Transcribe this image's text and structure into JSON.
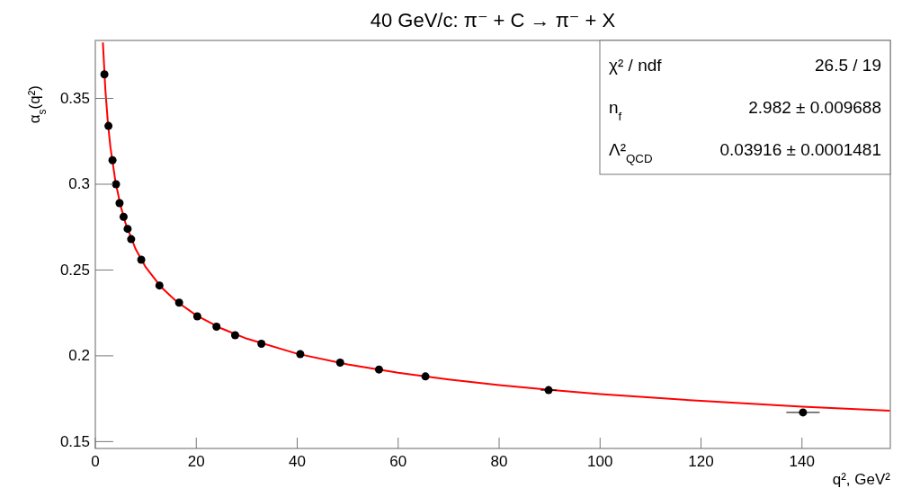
{
  "chart_data": {
    "type": "scatter",
    "title": "40 GeV/c: π⁻ + C → π⁻ + X",
    "xlabel": "q², GeV²",
    "ylabel": "α$_{s}$(q²)",
    "annotations": [
      "χ² / ndf",
      "26.5 / 19",
      "n$_{f}$",
      "2.982 ± 0.009688",
      "Λ²$_{QCD}$",
      "0.03916 ± 0.0001481"
    ],
    "xlim": [
      0,
      157.5
    ],
    "ylim": [
      0.146,
      0.3838
    ],
    "xticks": [
      0,
      20,
      40,
      60,
      80,
      100,
      120,
      140
    ],
    "yticks": [
      0.15,
      0.2,
      0.25,
      0.3,
      0.35
    ],
    "grid": false,
    "series": [
      {
        "type": "line",
        "color": "#ff0000",
        "x": [
          1.5,
          2,
          2.5,
          3,
          4,
          5,
          6,
          8,
          10,
          13,
          16,
          20,
          25,
          30,
          40,
          50,
          60,
          70,
          80,
          90,
          100,
          120,
          140,
          157.5
        ],
        "values": [
          0.3826,
          0.3545,
          0.3355,
          0.3214,
          0.3014,
          0.2875,
          0.2771,
          0.2621,
          0.2516,
          0.2402,
          0.2319,
          0.2236,
          0.2159,
          0.21,
          0.2012,
          0.195,
          0.1901,
          0.1862,
          0.1829,
          0.1802,
          0.1777,
          0.1737,
          0.1704,
          0.168
        ]
      },
      {
        "color": "#000000",
        "x": [
          1.8,
          2.6,
          3.4,
          4.1,
          4.8,
          5.6,
          6.4,
          7.1,
          9.1,
          12.7,
          16.6,
          20.2,
          24,
          27.7,
          32.9,
          40.6,
          48.5,
          56.2,
          65.4,
          89.8,
          140.2
        ],
        "values": [
          0.364,
          0.334,
          0.314,
          0.3,
          0.289,
          0.281,
          0.274,
          0.268,
          0.256,
          0.241,
          0.231,
          0.223,
          0.217,
          0.212,
          0.207,
          0.201,
          0.196,
          0.192,
          0.188,
          0.18,
          0.167
        ],
        "xerrors": [
          null,
          null,
          null,
          null,
          null,
          null,
          null,
          null,
          null,
          null,
          null,
          null,
          null,
          null,
          null,
          null,
          null,
          null,
          null,
          1.6,
          3.3
        ]
      }
    ]
  }
}
